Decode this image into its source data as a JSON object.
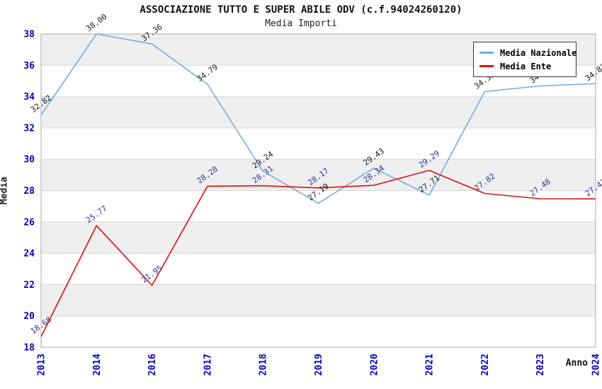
{
  "title": "ASSOCIAZIONE TUTTO E SUPER ABILE ODV (c.f.94024260120)",
  "subtitle": "Media Importi",
  "chart_data": {
    "type": "line",
    "categories": [
      "2013",
      "2014",
      "2016",
      "2017",
      "2018",
      "2019",
      "2020",
      "2021",
      "2022",
      "2023",
      "2024"
    ],
    "series": [
      {
        "name": "Media Nazionale",
        "color": "#77ACE0",
        "label_color": "#1a1a1a",
        "values": [
          32.82,
          38.0,
          37.36,
          34.79,
          29.24,
          27.19,
          29.43,
          27.71,
          34.32,
          34.68,
          34.83
        ]
      },
      {
        "name": "Media Ente",
        "color": "#E01010",
        "label_color": "#333399",
        "values": [
          18.68,
          25.77,
          21.95,
          28.28,
          28.31,
          28.17,
          28.34,
          29.29,
          27.82,
          27.48,
          27.47
        ]
      }
    ],
    "xlabel": "Anno",
    "ylabel": "Media",
    "ylim": [
      18,
      38
    ],
    "ytick_step": 2,
    "grid": "horizontal-bands",
    "legend_position": "top-right",
    "band_color": "#EFEFEF",
    "grid_line_color": "#D8D8D8",
    "plot_border_color": "#ABABAB",
    "tick_label_color": "#0000CC",
    "value_label_decimals": 2
  }
}
